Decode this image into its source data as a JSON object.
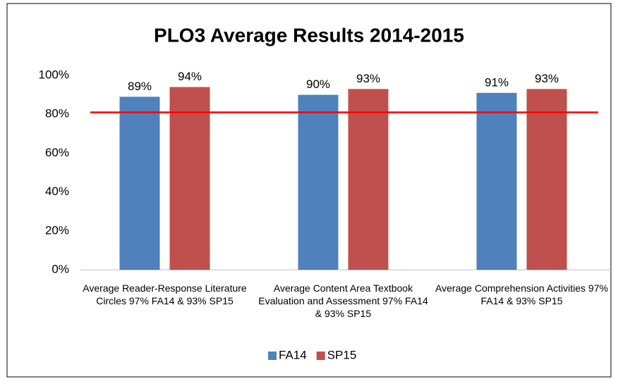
{
  "chart_data": {
    "type": "bar",
    "title": "PLO3 Average Results 2014-2015",
    "categories": [
      "Average Reader-Response Literature Circles 97% FA14 & 93% SP15",
      "Average Content Area Textbook Evaluation and Assessment  97% FA14 & 93% SP15",
      "Average Comprehension Activities 97% FA14 & 93% SP15"
    ],
    "series": [
      {
        "name": "FA14",
        "color": "#4f81bd",
        "values": [
          89,
          90,
          91
        ],
        "value_labels": [
          "89%",
          "90%",
          "91%"
        ]
      },
      {
        "name": "SP15",
        "color": "#c0504d",
        "values": [
          94,
          93,
          93
        ],
        "value_labels": [
          "94%",
          "93%",
          "93%"
        ]
      }
    ],
    "ylim": [
      0,
      100
    ],
    "yticks": [
      {
        "value": 0,
        "label": "0%"
      },
      {
        "value": 20,
        "label": "20%"
      },
      {
        "value": 40,
        "label": "40%"
      },
      {
        "value": 60,
        "label": "60%"
      },
      {
        "value": 80,
        "label": "80%"
      },
      {
        "value": 100,
        "label": "100%"
      }
    ],
    "reference_line": {
      "value": 81,
      "color": "#ff0000"
    },
    "legend": "bottom"
  }
}
